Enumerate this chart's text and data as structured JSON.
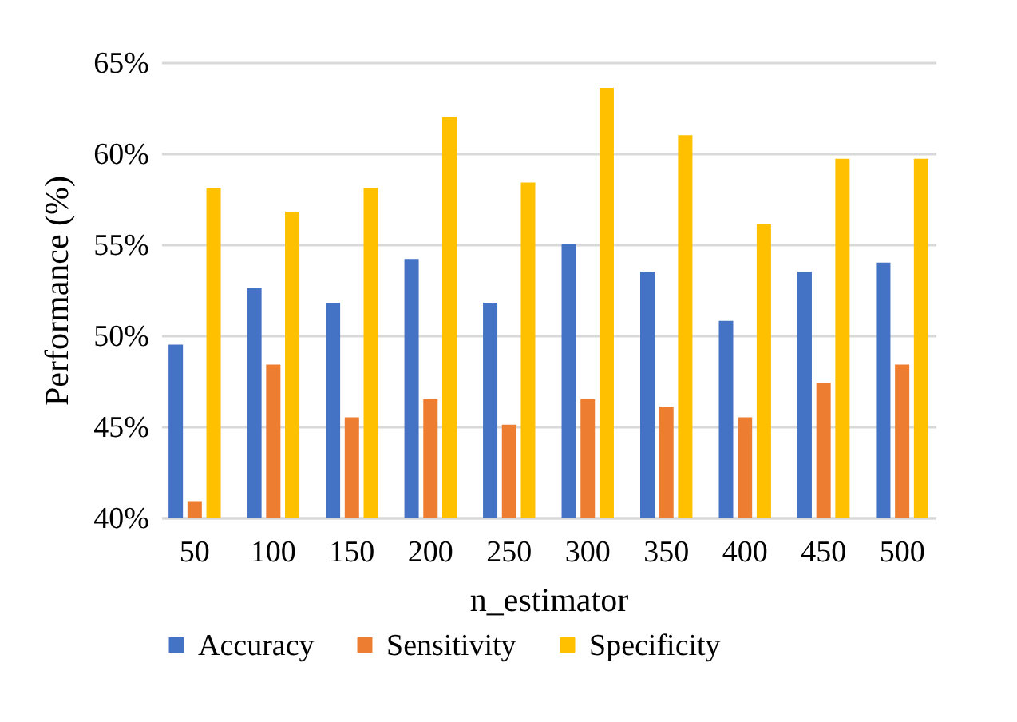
{
  "chart_data": {
    "type": "bar",
    "xlabel": "n_estimator",
    "ylabel": "Performance (%)",
    "categories": [
      "50",
      "100",
      "150",
      "200",
      "250",
      "300",
      "350",
      "400",
      "450",
      "500"
    ],
    "series": [
      {
        "name": "Accuracy",
        "color": "#4472c4",
        "values": [
          49.5,
          52.6,
          51.8,
          54.2,
          51.8,
          55.0,
          53.5,
          50.8,
          53.5,
          54.0
        ]
      },
      {
        "name": "Sensitivity",
        "color": "#ed7d31",
        "values": [
          40.9,
          48.4,
          45.5,
          46.5,
          45.1,
          46.5,
          46.1,
          45.5,
          47.4,
          48.4
        ]
      },
      {
        "name": "Specificity",
        "color": "#ffc000",
        "values": [
          58.1,
          56.8,
          58.1,
          62.0,
          58.4,
          63.6,
          61.0,
          56.1,
          59.7,
          59.7
        ]
      }
    ],
    "ylim": [
      40,
      65
    ],
    "yticks": [
      {
        "value": 40,
        "label": "40%"
      },
      {
        "value": 45,
        "label": "45%"
      },
      {
        "value": 50,
        "label": "50%"
      },
      {
        "value": 55,
        "label": "55%"
      },
      {
        "value": 60,
        "label": "60%"
      },
      {
        "value": 65,
        "label": "65%"
      }
    ],
    "grid": "y",
    "legend": "bottom"
  }
}
